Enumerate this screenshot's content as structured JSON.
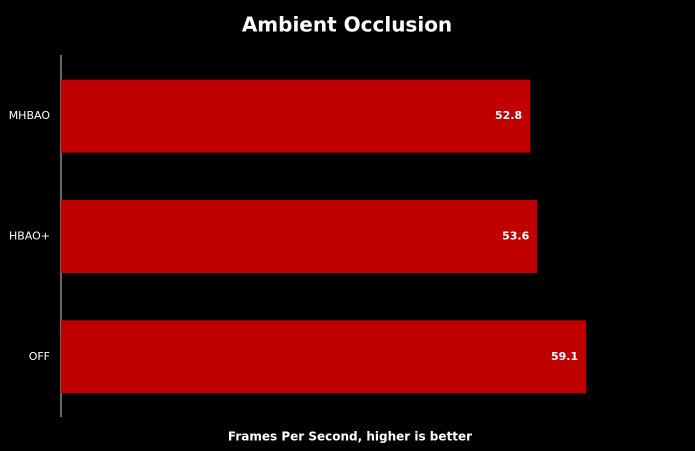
{
  "chart_data": {
    "type": "hbar",
    "title": "Ambient Occlusion",
    "x_label": "Frames Per Second, higher is better",
    "categories": [
      "MHBAO",
      "HBAO+",
      "OFF"
    ],
    "values": [
      52.8,
      53.6,
      59.1
    ],
    "color": "#c00000",
    "xlim": [
      0,
      70
    ]
  }
}
